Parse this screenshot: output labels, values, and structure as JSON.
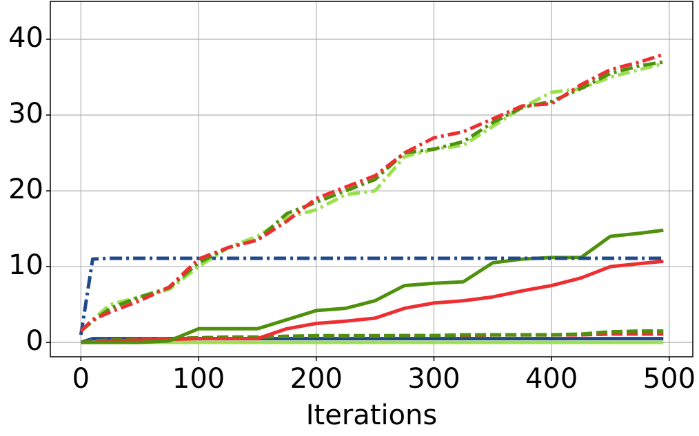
{
  "chart_data": {
    "type": "line",
    "xlabel": "Iterations",
    "x": [
      0,
      10,
      25,
      50,
      75,
      100,
      125,
      150,
      175,
      200,
      225,
      250,
      275,
      300,
      325,
      350,
      375,
      400,
      425,
      450,
      475,
      495
    ],
    "xlim": [
      -26,
      520
    ],
    "ylim": [
      -1.9,
      45
    ],
    "xticks": [
      0,
      100,
      200,
      300,
      400,
      500
    ],
    "yticks": [
      0,
      10,
      20,
      30,
      40
    ],
    "grid": true,
    "series": [
      {
        "color": "#9be04f",
        "style": "solid",
        "values": [
          0,
          0,
          0,
          0,
          0,
          0,
          0,
          0,
          0,
          0,
          0,
          0,
          0,
          0,
          0,
          0,
          0,
          0,
          0,
          0,
          0,
          0
        ]
      },
      {
        "color": "#1f4a8a",
        "style": "solid",
        "values": [
          0,
          0.5,
          0.5,
          0.5,
          0.5,
          0.5,
          0.5,
          0.5,
          0.5,
          0.5,
          0.5,
          0.5,
          0.5,
          0.5,
          0.5,
          0.5,
          0.5,
          0.5,
          0.5,
          0.5,
          0.5,
          0.5
        ]
      },
      {
        "color": "#ee2e31",
        "style": "dashed",
        "values": [
          0,
          0.2,
          0.3,
          0.4,
          0.5,
          0.6,
          0.7,
          0.7,
          0.8,
          0.8,
          0.8,
          0.8,
          0.9,
          0.9,
          0.9,
          1,
          1,
          1,
          1,
          1.1,
          1.1,
          1.1
        ]
      },
      {
        "color": "#4f900c",
        "style": "dashed",
        "values": [
          0,
          0.2,
          0.3,
          0.4,
          0.5,
          0.6,
          0.7,
          0.7,
          0.8,
          0.9,
          0.9,
          0.9,
          0.9,
          0.9,
          1,
          1,
          1,
          1,
          1.1,
          1.4,
          1.5,
          1.5
        ]
      },
      {
        "color": "#ee2e31",
        "style": "solid",
        "values": [
          0,
          0,
          0.2,
          0.3,
          0.4,
          0.5,
          0.5,
          0.5,
          1.8,
          2.5,
          2.8,
          3.2,
          4.5,
          5.2,
          5.5,
          6,
          6.8,
          7.5,
          8.5,
          10,
          10.4,
          10.7
        ]
      },
      {
        "color": "#4f900c",
        "style": "solid",
        "values": [
          0,
          0,
          0,
          0,
          0.2,
          1.8,
          1.8,
          1.8,
          3,
          4.2,
          4.5,
          5.5,
          7.5,
          7.8,
          8,
          10.5,
          11,
          11.2,
          11.2,
          14,
          14.4,
          14.8
        ]
      },
      {
        "color": "#1f4a8a",
        "style": "dashdot",
        "values": [
          1,
          11,
          11.1,
          11.1,
          11.1,
          11.1,
          11.1,
          11.1,
          11.1,
          11.1,
          11.1,
          11.1,
          11.1,
          11.1,
          11.1,
          11.1,
          11.1,
          11.1,
          11.1,
          11.1,
          11.1,
          11.1
        ]
      },
      {
        "color": "#9be04f",
        "style": "dashdot",
        "values": [
          1.5,
          3,
          5,
          6,
          7,
          10,
          12.5,
          14,
          16.5,
          17.5,
          19.5,
          20,
          24.5,
          25.5,
          26,
          28.5,
          31,
          33,
          33.5,
          35,
          36,
          36.8
        ]
      },
      {
        "color": "#4f900c",
        "style": "dashdot",
        "values": [
          1.5,
          2.8,
          4.5,
          6,
          7.2,
          10.5,
          12.5,
          13.5,
          17,
          18.5,
          20,
          21.5,
          25,
          25.5,
          26.5,
          29,
          31,
          31.8,
          33.5,
          35.5,
          36.5,
          37
        ]
      },
      {
        "color": "#ee2e31",
        "style": "dashdot",
        "values": [
          1.5,
          3,
          4,
          5.5,
          7.3,
          11,
          12.5,
          13.5,
          16,
          19,
          20.5,
          22,
          25,
          27,
          27.8,
          29.5,
          31.2,
          31.5,
          34,
          36,
          37,
          38
        ]
      }
    ]
  }
}
